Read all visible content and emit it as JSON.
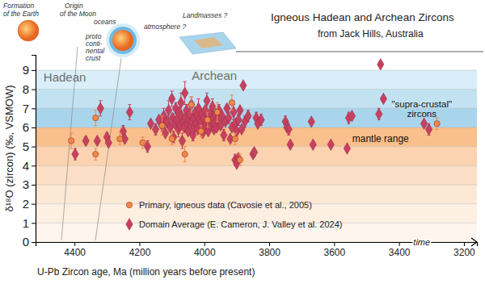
{
  "chart_data": {
    "type": "scatter",
    "title": "Igneous Hadean and Archean Zircons",
    "subtitle": "from Jack Hills, Australia",
    "x_label": "U-Pb Zircon age, Ma (million years before present)",
    "y_label": "δ¹⁸O (zircon) (‰, VSMOW)",
    "xlim": [
      4520,
      3160
    ],
    "xticks": [
      4400,
      4200,
      4000,
      3800,
      3600,
      3400,
      3200
    ],
    "ylim": [
      0,
      9.8
    ],
    "yticks": [
      0,
      1,
      2,
      3,
      4,
      5,
      6,
      7,
      8,
      9
    ],
    "grid": true,
    "legend": "bottom",
    "bands": [
      {
        "y0": 8,
        "y1": 9,
        "color": "#d9eef8"
      },
      {
        "y0": 7,
        "y1": 8,
        "color": "#c2e2f2"
      },
      {
        "y0": 6,
        "y1": 7,
        "color": "#a9d5ec"
      },
      {
        "y0": 5,
        "y1": 6,
        "color": "#f9bf8c"
      },
      {
        "y0": 4,
        "y1": 5,
        "color": "#fbd3b0"
      },
      {
        "y0": 3,
        "y1": 4,
        "color": "#fcdfc6"
      },
      {
        "y0": 2,
        "y1": 3,
        "color": "#fde8d6"
      },
      {
        "y0": 1,
        "y1": 2,
        "color": "#feefe3"
      },
      {
        "y0": 0,
        "y1": 1,
        "color": "#fef5ee"
      }
    ],
    "annotations": [
      {
        "text": "Hadean",
        "x": 4430,
        "y": 8.4
      },
      {
        "text": "Archean",
        "x": 3969,
        "y": 8.5
      },
      {
        "text": "\"supra-crustal\"",
        "x": 3330,
        "y": 7.05
      },
      {
        "text": "zircons",
        "x": 3330,
        "y": 6.55
      },
      {
        "text": "mantle range",
        "x": 3457,
        "y": 5.25
      },
      {
        "text": "time",
        "x": 3330,
        "y": 0
      }
    ],
    "series": [
      {
        "name": "Domain Average (E. Cameron, J. Valley et al. 2024)",
        "color": "#c8405f",
        "marker": "diamond",
        "x": [
          4398,
          4365,
          4330,
          4320,
          4300,
          4295,
          4250,
          4245,
          4230,
          4175,
          4165,
          4150,
          4140,
          4130,
          4125,
          4120,
          4115,
          4110,
          4105,
          4100,
          4098,
          4095,
          4090,
          4088,
          4085,
          4080,
          4078,
          4075,
          4072,
          4070,
          4068,
          4065,
          4062,
          4060,
          4058,
          4055,
          4052,
          4050,
          4048,
          4045,
          4042,
          4040,
          4038,
          4035,
          4032,
          4030,
          4028,
          4025,
          4022,
          4020,
          4018,
          4015,
          4012,
          4010,
          4008,
          4005,
          4002,
          4000,
          3998,
          3995,
          3992,
          3990,
          3988,
          3985,
          3982,
          3980,
          3978,
          3975,
          3972,
          3970,
          3968,
          3965,
          3962,
          3960,
          3955,
          3950,
          3945,
          3940,
          3935,
          3930,
          3925,
          3920,
          3915,
          3910,
          3905,
          3900,
          3895,
          3890,
          3885,
          3875,
          3880,
          3865,
          3905,
          3900,
          3895,
          3850,
          3846,
          3840,
          3835,
          3825,
          3750,
          3745,
          3740,
          3735,
          3670,
          3665,
          3610,
          3560,
          3555,
          3545,
          3462,
          3457,
          3448,
          3323,
          3308
        ],
        "values": [
          4.6,
          5.3,
          5.3,
          7.0,
          5.5,
          5.2,
          5.8,
          5.4,
          6.8,
          5.0,
          6.2,
          5.9,
          6.4,
          6.1,
          6.6,
          5.7,
          6.3,
          6.9,
          6.0,
          7.5,
          6.5,
          5.5,
          6.2,
          7.0,
          6.4,
          5.9,
          6.8,
          6.1,
          7.3,
          6.6,
          5.3,
          6.3,
          6.0,
          7.8,
          6.5,
          6.9,
          6.2,
          5.8,
          6.4,
          6.7,
          6.1,
          7.2,
          6.3,
          5.6,
          6.5,
          6.0,
          6.8,
          6.2,
          6.6,
          5.9,
          7.0,
          6.4,
          6.1,
          6.3,
          6.7,
          5.7,
          6.5,
          6.0,
          6.9,
          6.2,
          7.4,
          6.4,
          5.8,
          6.6,
          6.1,
          6.8,
          6.3,
          7.1,
          6.5,
          5.9,
          6.2,
          6.7,
          6.0,
          6.4,
          6.9,
          6.1,
          6.6,
          5.6,
          6.3,
          7.0,
          6.5,
          5.4,
          6.0,
          6.8,
          6.2,
          5.8,
          6.4,
          6.9,
          5.9,
          6.3,
          8.2,
          6.6,
          4.3,
          4.1,
          4.4,
          4.6,
          4.7,
          6.5,
          6.2,
          6.4,
          6.3,
          6.0,
          5.9,
          5.1,
          6.3,
          5.1,
          5.1,
          4.9,
          6.5,
          6.6,
          6.7,
          9.3,
          7.5,
          6.2,
          5.9
        ],
        "errors": [
          0.3,
          0.2,
          null,
          0.4,
          0.2,
          null,
          0.3,
          null,
          0.4,
          0.3,
          null,
          0.3,
          null,
          0.3,
          0.4,
          null,
          0.3,
          0.5,
          null,
          0.4,
          null,
          0.3,
          null,
          0.3,
          null,
          0.4,
          null,
          null,
          0.5,
          null,
          0.4,
          null,
          null,
          0.6,
          null,
          0.3,
          null,
          null,
          0.3,
          null,
          null,
          0.4,
          null,
          0.3,
          null,
          null,
          null,
          0.3,
          null,
          null,
          0.5,
          null,
          null,
          0.3,
          null,
          null,
          0.3,
          null,
          null,
          null,
          0.4,
          null,
          null,
          0.3,
          null,
          null,
          null,
          0.4,
          null,
          null,
          0.3,
          null,
          null,
          null,
          0.3,
          null,
          null,
          0.3,
          null,
          null,
          0.3,
          null,
          null,
          0.4,
          null,
          null,
          0.3,
          null,
          null,
          0.3,
          null,
          0.3,
          0.3,
          null,
          null,
          null,
          null,
          0.3,
          null,
          0.3,
          0.3,
          null,
          0.3,
          null,
          null,
          null,
          null,
          null,
          0.3,
          null,
          0.3,
          null,
          null,
          null,
          0.3
        ]
      },
      {
        "name": "Primary, igneous data (Cavosie et al., 2005)",
        "color": "#ee8a47",
        "marker": "circle",
        "x": [
          4410,
          4335,
          4335,
          4260,
          4190,
          4130,
          4100,
          4060,
          4040,
          4010,
          3990,
          3960,
          3915,
          3905,
          3890,
          3283
        ],
        "values": [
          5.3,
          6.5,
          4.6,
          5.4,
          5.2,
          6.1,
          5.4,
          4.6,
          7.2,
          5.8,
          6.4,
          6.8,
          7.3,
          5.4,
          4.3,
          6.2
        ],
        "errors": [
          0.4,
          0.4,
          0.3,
          0.3,
          0.3,
          0.5,
          0.3,
          0.4,
          0.4,
          0.3,
          0.4,
          0.5,
          0.4,
          0.3,
          0.3,
          0.3
        ]
      }
    ]
  },
  "illustrations": [
    {
      "label": [
        "Formation",
        "of the Earth"
      ]
    },
    {
      "label": [
        "Origin",
        "of the Moon"
      ]
    },
    {
      "label": [
        "oceans"
      ]
    },
    {
      "label": [
        "atmosphere ?"
      ]
    },
    {
      "label": [
        "proto",
        "conti-",
        "nental",
        "crust"
      ]
    },
    {
      "label": [
        "Landmasses ?"
      ]
    }
  ]
}
